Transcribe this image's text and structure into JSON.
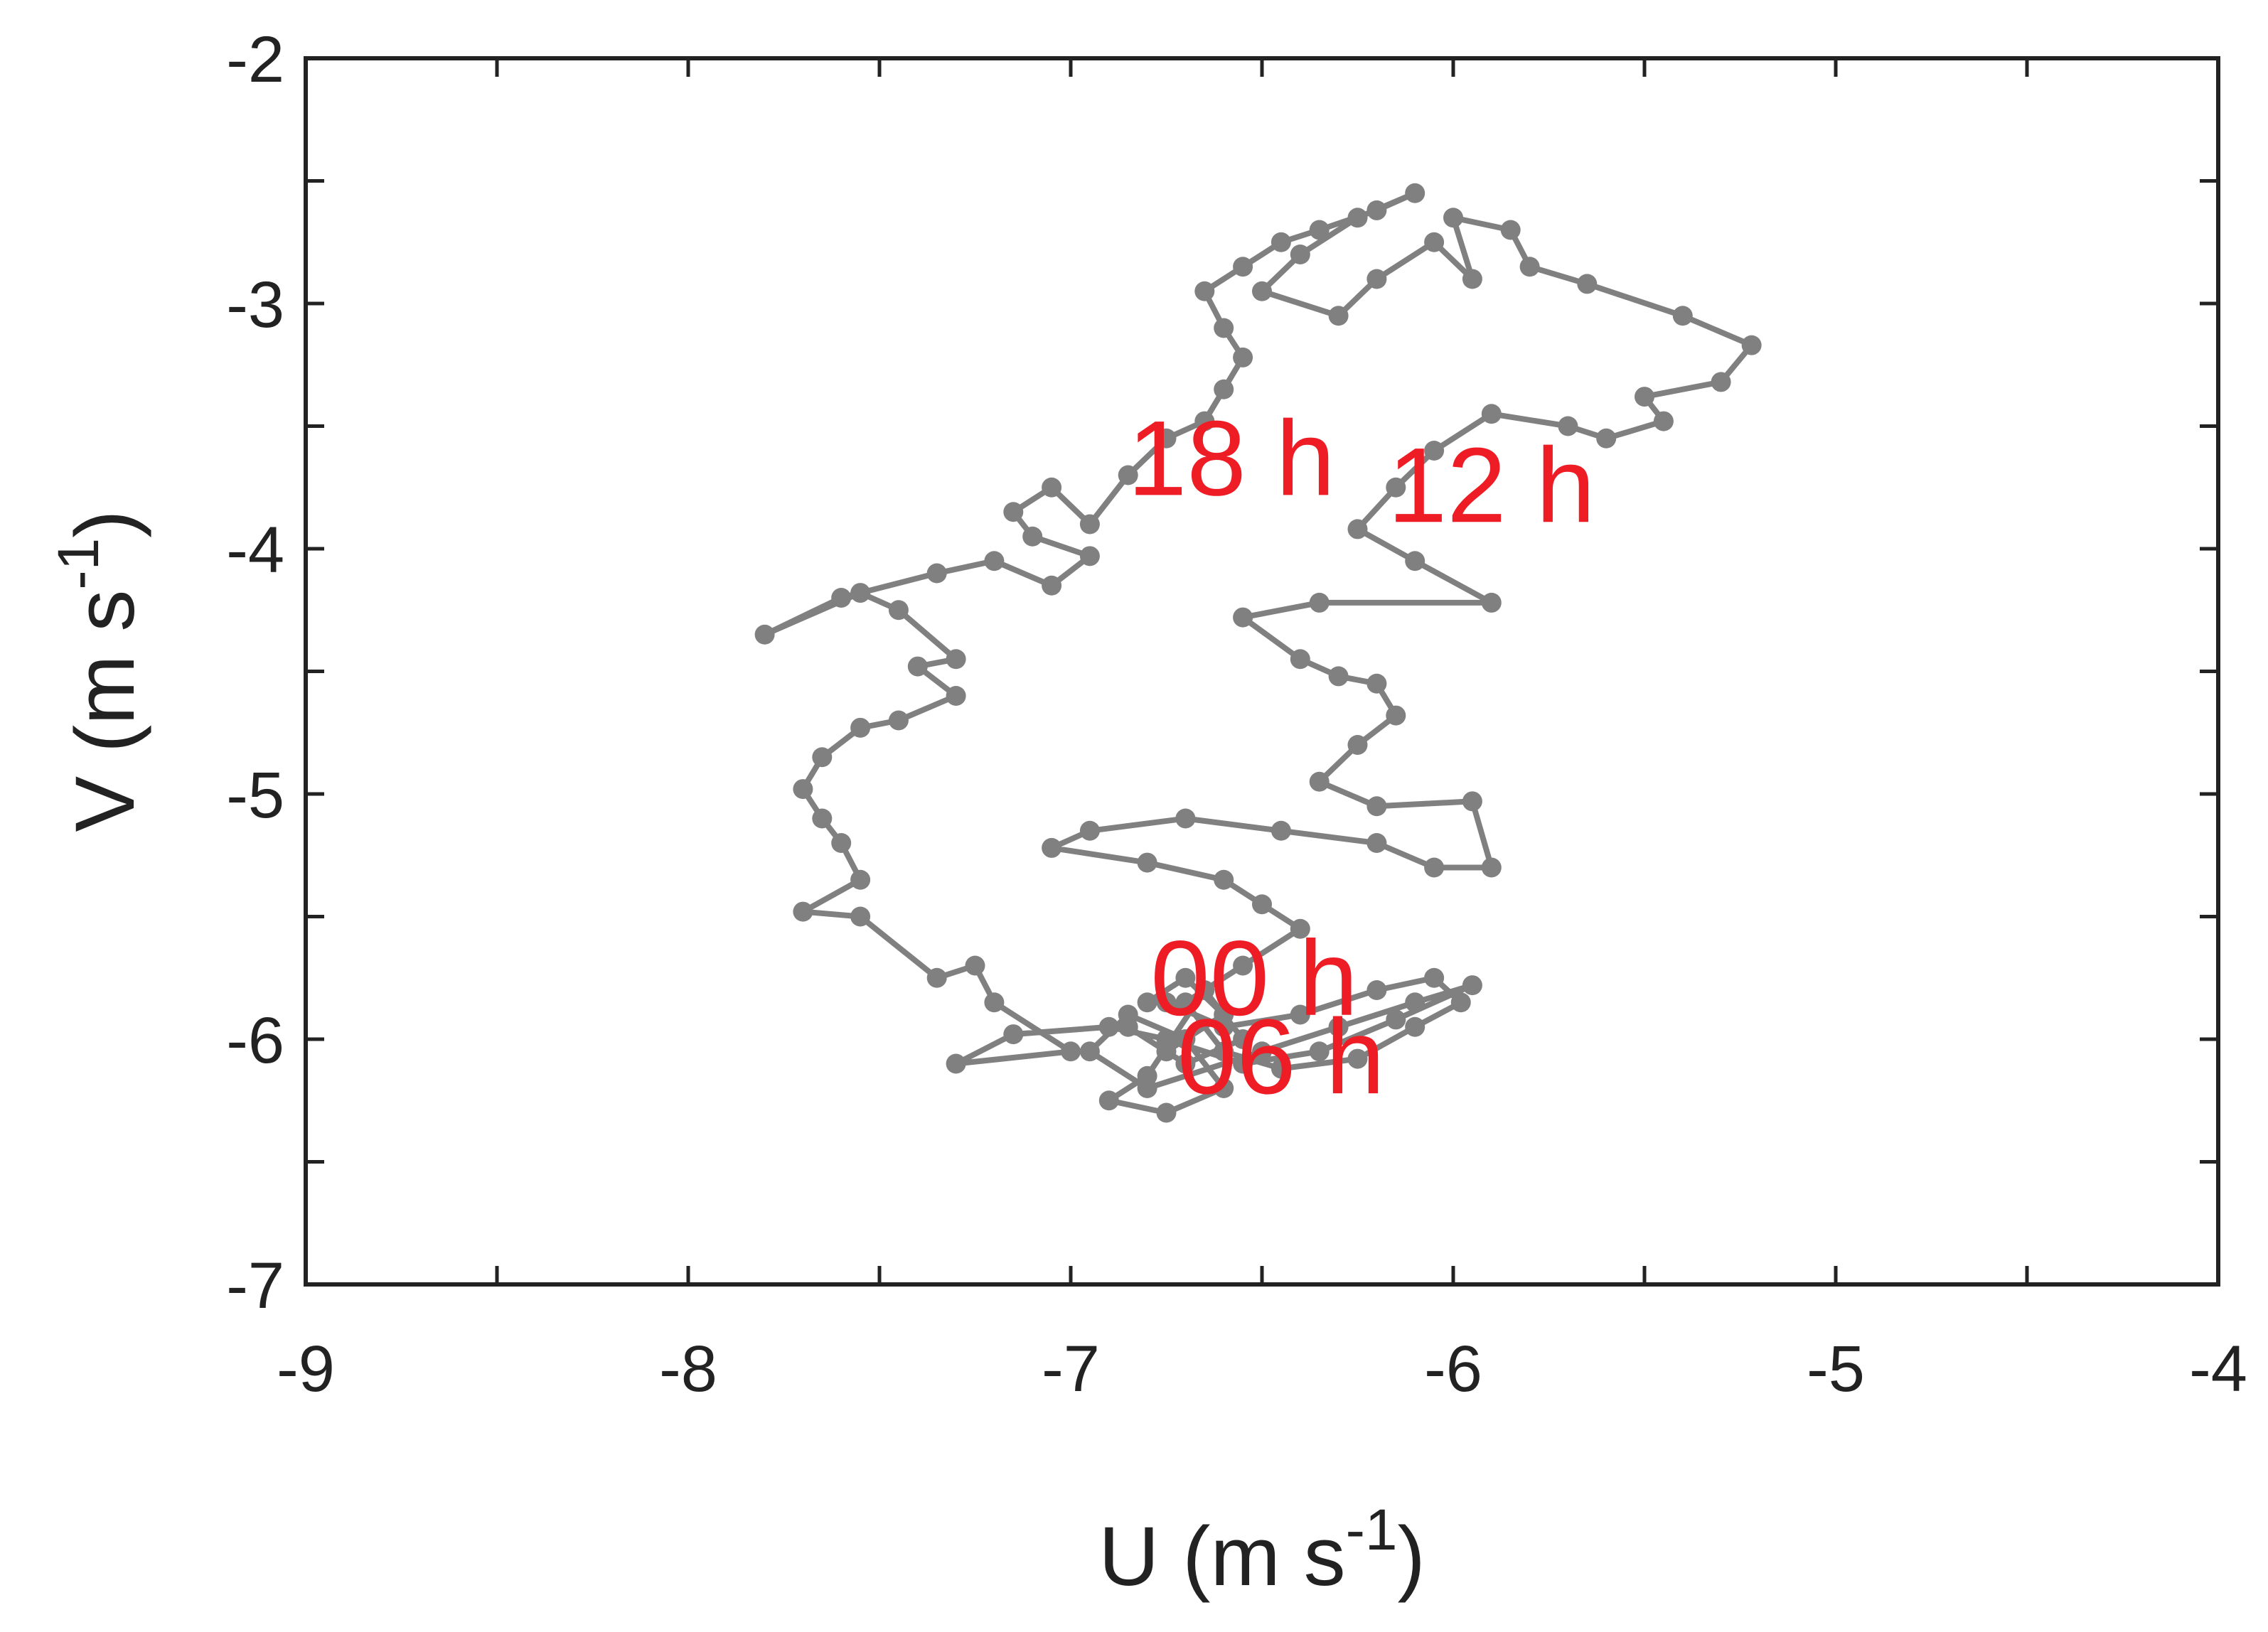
{
  "chart_data": {
    "type": "line",
    "xlabel": {
      "base": "U (m s",
      "exp": "-1",
      "close": ")"
    },
    "ylabel": {
      "base": "V (m s",
      "exp": "-1",
      "close": ")"
    },
    "xlim": [
      -9,
      -4
    ],
    "ylim": [
      -7,
      -2
    ],
    "xticks": [
      -9,
      -8,
      -7,
      -6,
      -5,
      -4
    ],
    "yticks": [
      -7,
      -6,
      -5,
      -4,
      -3,
      -2
    ],
    "xtick_labels": [
      "-9",
      "-8",
      "-7",
      "-6",
      "-5",
      "-4"
    ],
    "ytick_labels": [
      "-7",
      "-6",
      "-5",
      "-4",
      "-3",
      "-2"
    ],
    "grid": false,
    "series": [
      {
        "color": "#808080",
        "marker": "circle",
        "points": [
          [
            -6.8,
            -5.85
          ],
          [
            -6.7,
            -5.75
          ],
          [
            -6.6,
            -5.9
          ],
          [
            -6.75,
            -6.05
          ],
          [
            -6.85,
            -5.95
          ],
          [
            -6.7,
            -6.1
          ],
          [
            -6.55,
            -6.0
          ],
          [
            -6.65,
            -5.8
          ],
          [
            -6.8,
            -6.15
          ],
          [
            -6.9,
            -6.25
          ],
          [
            -6.75,
            -6.3
          ],
          [
            -6.6,
            -6.2
          ],
          [
            -6.7,
            -6.0
          ],
          [
            -6.85,
            -5.9
          ],
          [
            -6.95,
            -6.05
          ],
          [
            -6.8,
            -6.2
          ],
          [
            -6.5,
            -6.05
          ],
          [
            -6.3,
            -5.95
          ],
          [
            -6.1,
            -5.85
          ],
          [
            -5.95,
            -5.78
          ],
          [
            -6.15,
            -5.92
          ],
          [
            -6.35,
            -6.05
          ],
          [
            -6.55,
            -6.1
          ],
          [
            -6.75,
            -6.0
          ],
          [
            -6.9,
            -5.95
          ],
          [
            -7.15,
            -5.98
          ],
          [
            -7.3,
            -6.1
          ],
          [
            -7.0,
            -6.05
          ],
          [
            -7.2,
            -5.85
          ],
          [
            -7.25,
            -5.7
          ],
          [
            -7.35,
            -5.75
          ],
          [
            -7.55,
            -5.5
          ],
          [
            -7.7,
            -5.48
          ],
          [
            -7.55,
            -5.35
          ],
          [
            -7.6,
            -5.2
          ],
          [
            -7.65,
            -5.1
          ],
          [
            -7.7,
            -4.98
          ],
          [
            -7.65,
            -4.85
          ],
          [
            -7.55,
            -4.73
          ],
          [
            -7.45,
            -4.7
          ],
          [
            -7.3,
            -4.6
          ],
          [
            -7.4,
            -4.48
          ],
          [
            -7.3,
            -4.45
          ],
          [
            -7.45,
            -4.25
          ],
          [
            -7.55,
            -4.18
          ],
          [
            -7.8,
            -4.35
          ],
          [
            -7.6,
            -4.2
          ],
          [
            -7.35,
            -4.1
          ],
          [
            -7.2,
            -4.05
          ],
          [
            -7.05,
            -4.15
          ],
          [
            -6.95,
            -4.03
          ],
          [
            -7.1,
            -3.95
          ],
          [
            -7.15,
            -3.85
          ],
          [
            -7.05,
            -3.75
          ],
          [
            -6.95,
            -3.9
          ],
          [
            -6.85,
            -3.7
          ],
          [
            -6.75,
            -3.55
          ],
          [
            -6.65,
            -3.48
          ],
          [
            -6.6,
            -3.35
          ],
          [
            -6.55,
            -3.22
          ],
          [
            -6.6,
            -3.1
          ],
          [
            -6.65,
            -2.95
          ],
          [
            -6.55,
            -2.85
          ],
          [
            -6.45,
            -2.75
          ],
          [
            -6.35,
            -2.7
          ],
          [
            -6.2,
            -2.62
          ],
          [
            -6.1,
            -2.55
          ],
          [
            -6.25,
            -2.65
          ],
          [
            -6.4,
            -2.8
          ],
          [
            -6.5,
            -2.95
          ],
          [
            -6.3,
            -3.05
          ],
          [
            -6.2,
            -2.9
          ],
          [
            -6.05,
            -2.75
          ],
          [
            -5.95,
            -2.9
          ],
          [
            -6.0,
            -2.65
          ],
          [
            -5.85,
            -2.7
          ],
          [
            -5.8,
            -2.85
          ],
          [
            -5.65,
            -2.92
          ],
          [
            -5.4,
            -3.05
          ],
          [
            -5.22,
            -3.17
          ],
          [
            -5.3,
            -3.32
          ],
          [
            -5.5,
            -3.38
          ],
          [
            -5.45,
            -3.48
          ],
          [
            -5.6,
            -3.55
          ],
          [
            -5.7,
            -3.5
          ],
          [
            -5.9,
            -3.45
          ],
          [
            -6.05,
            -3.6
          ],
          [
            -6.15,
            -3.75
          ],
          [
            -6.25,
            -3.92
          ],
          [
            -6.1,
            -4.05
          ],
          [
            -5.9,
            -4.22
          ],
          [
            -6.35,
            -4.22
          ],
          [
            -6.55,
            -4.28
          ],
          [
            -6.4,
            -4.45
          ],
          [
            -6.3,
            -4.52
          ],
          [
            -6.2,
            -4.55
          ],
          [
            -6.15,
            -4.68
          ],
          [
            -6.25,
            -4.8
          ],
          [
            -6.35,
            -4.95
          ],
          [
            -6.2,
            -5.05
          ],
          [
            -5.95,
            -5.03
          ],
          [
            -5.9,
            -5.3
          ],
          [
            -6.05,
            -5.3
          ],
          [
            -6.2,
            -5.2
          ],
          [
            -6.45,
            -5.15
          ],
          [
            -6.7,
            -5.1
          ],
          [
            -6.95,
            -5.15
          ],
          [
            -7.05,
            -5.22
          ],
          [
            -6.8,
            -5.28
          ],
          [
            -6.6,
            -5.35
          ],
          [
            -6.5,
            -5.45
          ],
          [
            -6.4,
            -5.55
          ],
          [
            -6.55,
            -5.7
          ],
          [
            -6.7,
            -5.85
          ],
          [
            -6.6,
            -6.05
          ],
          [
            -6.45,
            -6.12
          ],
          [
            -6.25,
            -6.08
          ],
          [
            -6.1,
            -5.95
          ],
          [
            -5.98,
            -5.85
          ],
          [
            -6.05,
            -5.75
          ],
          [
            -6.2,
            -5.8
          ],
          [
            -6.4,
            -5.9
          ],
          [
            -6.6,
            -5.95
          ],
          [
            -6.75,
            -5.85
          ]
        ]
      }
    ],
    "annotations": [
      {
        "text": "18 h",
        "x": -6.58,
        "y": -3.63
      },
      {
        "text": "12 h",
        "x": -5.9,
        "y": -3.74
      },
      {
        "text": "00 h",
        "x": -6.52,
        "y": -5.75
      },
      {
        "text": "06 h",
        "x": -6.45,
        "y": -6.07
      }
    ]
  }
}
